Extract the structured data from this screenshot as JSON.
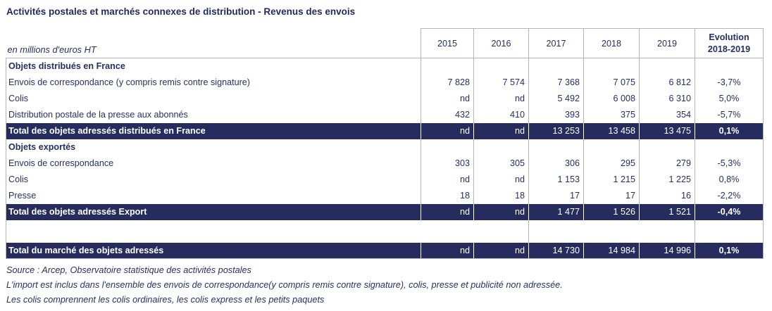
{
  "title": "Activités postales et marchés connexes de distribution - Revenus des envois",
  "table": {
    "unit_label": "en millions d'euros HT",
    "year_columns": [
      "2015",
      "2016",
      "2017",
      "2018",
      "2019"
    ],
    "evolution_header": {
      "line1": "Evolution",
      "line2": "2018-2019"
    },
    "rows": [
      {
        "type": "section",
        "label": "Objets distribués en France"
      },
      {
        "type": "data",
        "label": "Envois de correspondance (y compris remis contre signature)",
        "values": [
          "7 828",
          "7 574",
          "7 368",
          "7 075",
          "6 812"
        ],
        "evolution": "-3,7%"
      },
      {
        "type": "data",
        "label": "Colis",
        "values": [
          "nd",
          "nd",
          "5 492",
          "6 008",
          "6 310"
        ],
        "evolution": "5,0%"
      },
      {
        "type": "data",
        "label": "Distribution postale de la presse aux abonnés",
        "values": [
          "432",
          "410",
          "393",
          "375",
          "354"
        ],
        "evolution": "-5,7%"
      },
      {
        "type": "total",
        "label": "Total des objets adressés distribués en France",
        "values": [
          "nd",
          "nd",
          "13 253",
          "13 458",
          "13 475"
        ],
        "evolution": "0,1%"
      },
      {
        "type": "section",
        "label": "Objets exportés"
      },
      {
        "type": "data",
        "label": "Envois de correspondance",
        "values": [
          "303",
          "305",
          "306",
          "295",
          "279"
        ],
        "evolution": "-5,3%"
      },
      {
        "type": "data",
        "label": "Colis",
        "values": [
          "nd",
          "nd",
          "1 153",
          "1 215",
          "1 225"
        ],
        "evolution": "0,8%"
      },
      {
        "type": "data",
        "label": "Presse",
        "values": [
          "18",
          "18",
          "17",
          "17",
          "16"
        ],
        "evolution": "-2,2%"
      },
      {
        "type": "total",
        "label": "Total des objets adressés Export",
        "values": [
          "nd",
          "nd",
          "1 477",
          "1 526",
          "1 521"
        ],
        "evolution": "-0,4%"
      },
      {
        "type": "spacer"
      },
      {
        "type": "total",
        "label": "Total du marché des objets adressés",
        "values": [
          "nd",
          "nd",
          "14 730",
          "14 984",
          "14 996"
        ],
        "evolution": "0,1%"
      }
    ]
  },
  "footnotes": [
    "Source : Arcep, Observatoire statistique des activités postales",
    "L'import est inclus dans l'ensemble des envois de correspondance(y compris remis contre signature), colis, presse et publicité non adressée.",
    "Les colis comprennent les colis ordinaires, les colis express et les petits paquets"
  ],
  "colors": {
    "navy_fill": "#262c5e",
    "navy_text": "#243063",
    "border_gray": "#b5b5b5"
  }
}
